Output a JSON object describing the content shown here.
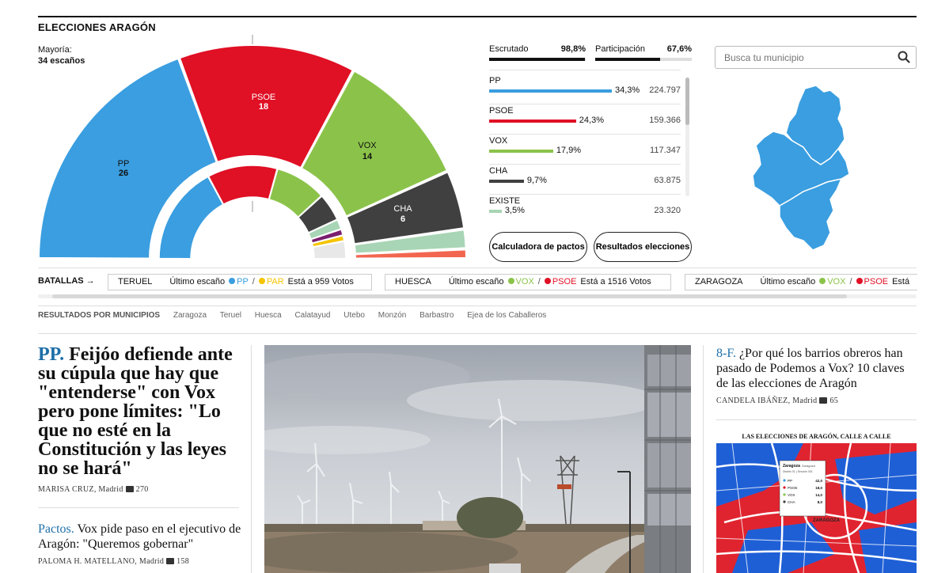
{
  "section": {
    "title": "ELECCIONES ARAGÓN"
  },
  "majority": {
    "label": "Mayoría:",
    "value": "34 escaños"
  },
  "hemicycle": [
    {
      "party": "PP",
      "seats": "26",
      "color": "#3a9ee0"
    },
    {
      "party": "PSOE",
      "seats": "18",
      "color": "#e01025"
    },
    {
      "party": "VOX",
      "seats": "14",
      "color": "#8bc34a"
    },
    {
      "party": "CHA",
      "seats": "6",
      "color": "#404040"
    }
  ],
  "stats": {
    "escrutado_label": "Escrutado",
    "escrutado_value": "98,8%",
    "escrutado_pct": 98.8,
    "participacion_label": "Participación",
    "participacion_value": "67,6%",
    "participacion_pct": 67.6
  },
  "results": [
    {
      "party": "PP",
      "pct": "34,3%",
      "votes": "224.797",
      "color": "#3a9ee0",
      "share": 34.3
    },
    {
      "party": "PSOE",
      "pct": "24,3%",
      "votes": "159.366",
      "color": "#e01025",
      "share": 24.3
    },
    {
      "party": "VOX",
      "pct": "17,9%",
      "votes": "117.347",
      "color": "#8bc34a",
      "share": 17.9
    },
    {
      "party": "CHA",
      "pct": "9,7%",
      "votes": "63.875",
      "color": "#404040",
      "share": 9.7
    },
    {
      "party": "EXISTE",
      "pct": "3,5%",
      "votes": "23.320",
      "color": "#a8d5b5",
      "share": 3.5
    }
  ],
  "buttons": {
    "calculadora": "Calculadora de pactos",
    "resultados": "Resultados elecciones"
  },
  "search": {
    "placeholder": "Busca tu municipio"
  },
  "battles": {
    "label": "BATALLAS →",
    "items": [
      {
        "place": "TERUEL",
        "ultimo": "Último escaño",
        "a": "PP",
        "a_color": "#3a9ee0",
        "b": "PAR",
        "b_color": "#f5c400",
        "diff": "Está a 959 Votos"
      },
      {
        "place": "HUESCA",
        "ultimo": "Último escaño",
        "a": "VOX",
        "a_color": "#8bc34a",
        "b": "PSOE",
        "b_color": "#e01025",
        "diff": "Está a 1516 Votos"
      },
      {
        "place": "ZARAGOZA",
        "ultimo": "Último escaño",
        "a": "VOX",
        "a_color": "#8bc34a",
        "b": "PSOE",
        "b_color": "#e01025",
        "diff": "Está"
      }
    ]
  },
  "municipios": {
    "title": "RESULTADOS POR MUNICIPIOS",
    "items": [
      "Zaragoza",
      "Teruel",
      "Huesca",
      "Calatayud",
      "Utebo",
      "Monzón",
      "Barbastro",
      "Ejea de los Caballeros"
    ]
  },
  "news": [
    {
      "kicker": "PP.",
      "headline": "Feijóo defiende ante su cúpula que hay que \"entenderse\" con Vox pero pone límites: \"Lo que no esté en la Constitución y las leyes no se hará\"",
      "author": "Marisa Cruz",
      "place": ", Madrid",
      "comments": "270"
    },
    {
      "kicker": "Pactos.",
      "headline": "Vox pide paso en el ejecutivo de Aragón: \"Queremos gobernar\"",
      "author": "Paloma H. Matellano",
      "place": ", Madrid",
      "comments": "158"
    },
    {
      "kicker": "8-F.",
      "headline": "¿Por qué los barrios obreros han pasado de Podemos a Vox? 10 claves de las elecciones de Aragón",
      "author": "Candela Ibáñez",
      "place": ", Madrid",
      "comments": "65"
    }
  ],
  "mapcard": {
    "title": "LAS ELECCIONES DE ARAGÓN, CALLE A CALLE",
    "popup_title": "Zaragoza",
    "popup_city": "Zaragoza",
    "popup_sub": "Distrito 01 | Sección 001",
    "rows": [
      {
        "party": "PP",
        "value": "42,0"
      },
      {
        "party": "PSOE",
        "value": "18,0"
      },
      {
        "party": "VOX",
        "value": "14,0"
      },
      {
        "party": "CHA",
        "value": "8,0"
      }
    ],
    "city_label": "ZARAGOZA"
  }
}
